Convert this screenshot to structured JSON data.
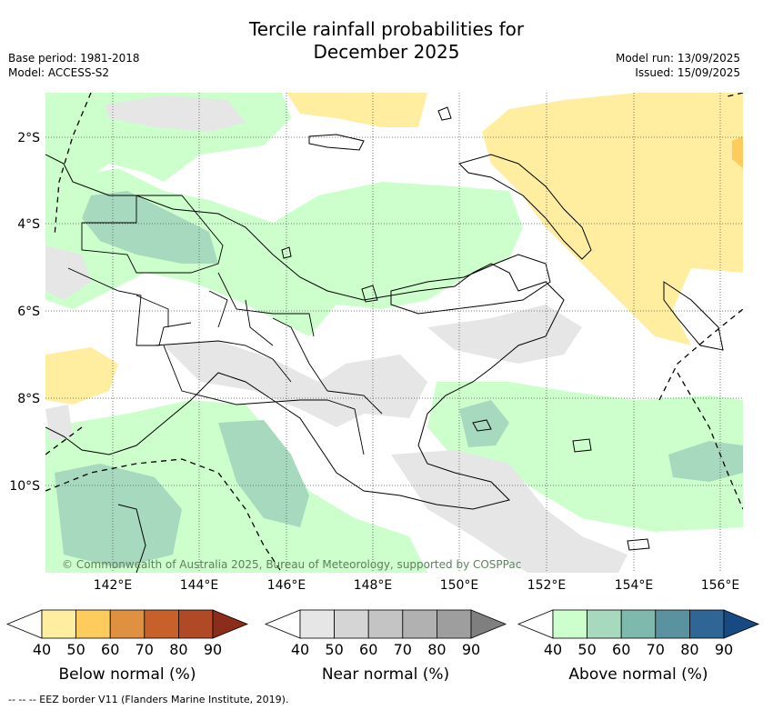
{
  "title_line1": "Tercile rainfall probabilities for",
  "title_line2": "December 2025",
  "base_period": "Base period: 1981-2018",
  "model": "Model: ACCESS-S2",
  "model_run": "Model run: 13/09/2025",
  "issued": "Issued: 15/09/2025",
  "map": {
    "lat_labels": [
      "2°S",
      "4°S",
      "6°S",
      "8°S",
      "10°S"
    ],
    "lon_labels": [
      "142°E",
      "144°E",
      "146°E",
      "148°E",
      "150°E",
      "152°E",
      "154°E",
      "156°E"
    ],
    "copyright": "© Commonwealth of Australia 2025, Bureau of Meteorology, supported by COSPPac"
  },
  "colorbars": [
    {
      "label": "Below normal (%)",
      "ticks": [
        "40",
        "50",
        "60",
        "70",
        "80",
        "90"
      ],
      "colors": [
        "#ffffff",
        "#ffeda0",
        "#fecc5c",
        "#e0913f",
        "#c8602c",
        "#b04a26",
        "#8c2d1b"
      ]
    },
    {
      "label": "Near normal (%)",
      "ticks": [
        "40",
        "50",
        "60",
        "70",
        "80",
        "90"
      ],
      "colors": [
        "#ffffff",
        "#e6e6e6",
        "#d5d5d5",
        "#c4c4c4",
        "#b1b1b1",
        "#9e9e9e",
        "#7f7f7f"
      ]
    },
    {
      "label": "Above normal (%)",
      "ticks": [
        "40",
        "50",
        "60",
        "70",
        "80",
        "90"
      ],
      "colors": [
        "#ffffff",
        "#ccffcc",
        "#a6d9bd",
        "#7fb8ad",
        "#5a92a0",
        "#2f6696",
        "#174a82"
      ]
    }
  ],
  "footer": "--  --  -- EEZ border V11 (Flanders Marine Institute, 2019)."
}
